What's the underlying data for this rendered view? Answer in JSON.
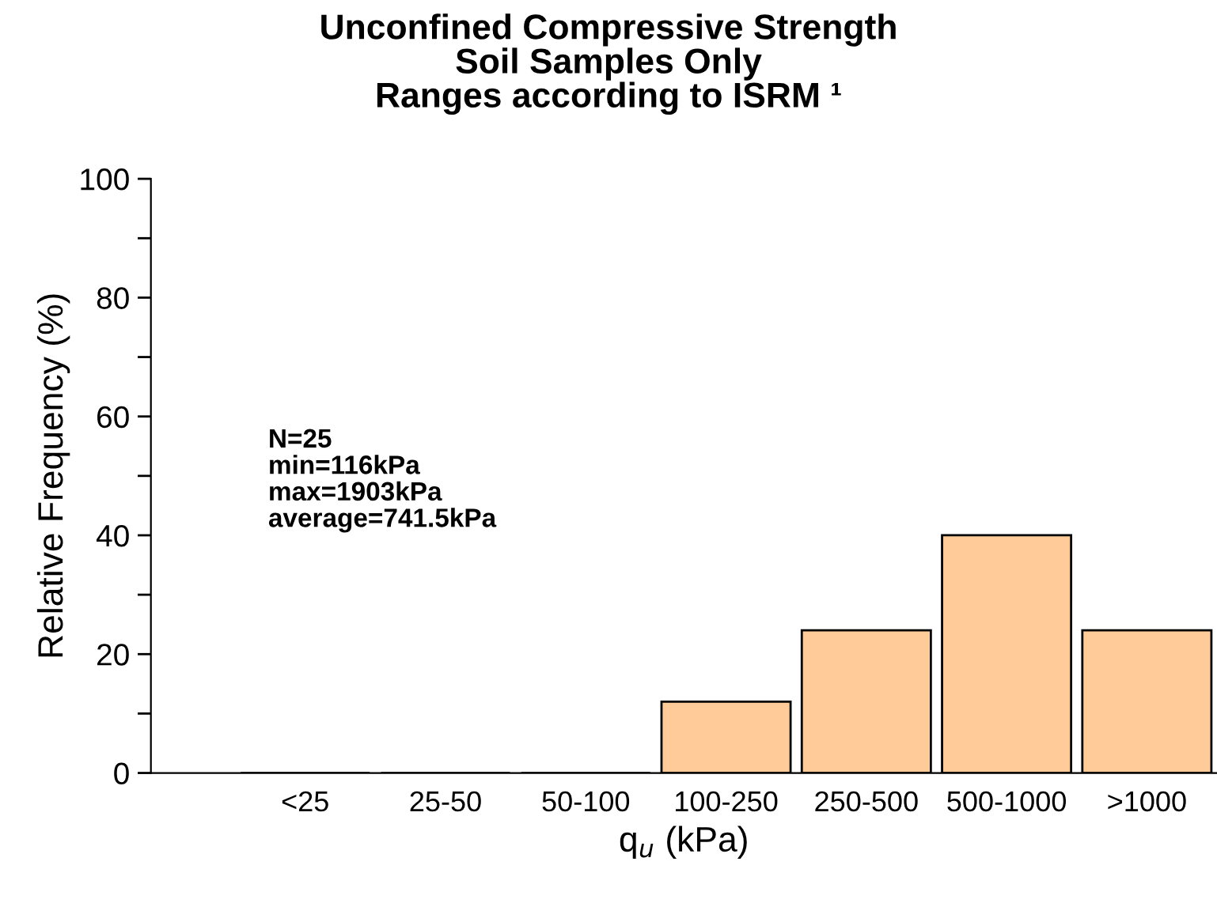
{
  "chart_data": {
    "type": "bar",
    "title": "Unconfined Compressive Strength\nSoil Samples Only\nRanges according to ISRM ¹",
    "xlabel": "q$_{u}$ (kPa)",
    "ylabel": "Relative Frequency (%)",
    "categories": [
      "<25",
      "25-50",
      "50-100",
      "100-250",
      "250-500",
      "500-1000",
      ">1000"
    ],
    "values": [
      0,
      0,
      0,
      12,
      24,
      40,
      24
    ],
    "color": "#ffcc99",
    "ylim": [
      0,
      100
    ],
    "yticks": [
      0,
      {
        "value": 10,
        "label": null
      },
      20,
      {
        "value": 30,
        "label": null
      },
      40,
      {
        "value": 50,
        "label": null
      },
      60,
      {
        "value": 70,
        "label": null
      },
      80,
      {
        "value": 90,
        "label": null
      },
      100
    ],
    "annotations": [
      "N=25\nmin=116kPa\nmax=1903kPa\naverage=741.5kPa"
    ],
    "grid": false,
    "legend": false
  }
}
